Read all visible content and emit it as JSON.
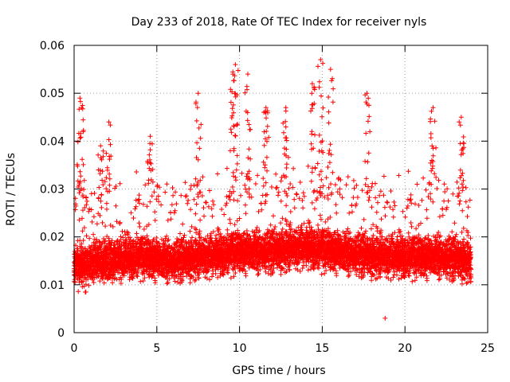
{
  "chart_data": {
    "type": "scatter",
    "title": "Day 233 of 2018, Rate Of TEC Index for receiver nyls",
    "xlabel": "GPS time / hours",
    "ylabel": "ROTI / TECUs",
    "xlim": [
      0,
      25
    ],
    "ylim": [
      0,
      0.06
    ],
    "grid": true,
    "legend": "none",
    "marker": "+",
    "color": "#ff0000",
    "x_ticks": [
      "0",
      "5",
      "10",
      "15",
      "20",
      "25"
    ],
    "y_ticks": [
      "0",
      "0.01",
      "0.02",
      "0.03",
      "0.04",
      "0.05",
      "0.06"
    ],
    "x_tick_values": [
      0,
      5,
      10,
      15,
      20,
      25
    ],
    "y_tick_values": [
      0,
      0.01,
      0.02,
      0.03,
      0.04,
      0.05,
      0.06
    ],
    "series": [
      {
        "name": "ROTI",
        "sampling_interval_hours": 0.0083,
        "x_range": [
          0,
          24
        ],
        "typical_band": [
          0.008,
          0.025
        ],
        "baseline_profile": [
          {
            "x": 0,
            "y": 0.014
          },
          {
            "x": 2,
            "y": 0.015
          },
          {
            "x": 4,
            "y": 0.016
          },
          {
            "x": 6,
            "y": 0.015
          },
          {
            "x": 8,
            "y": 0.016
          },
          {
            "x": 10,
            "y": 0.017
          },
          {
            "x": 12,
            "y": 0.017
          },
          {
            "x": 14,
            "y": 0.018
          },
          {
            "x": 16,
            "y": 0.017
          },
          {
            "x": 18,
            "y": 0.016
          },
          {
            "x": 20,
            "y": 0.016
          },
          {
            "x": 22,
            "y": 0.016
          },
          {
            "x": 24,
            "y": 0.015
          }
        ],
        "peaks": [
          {
            "x": 0.35,
            "y": 0.049
          },
          {
            "x": 0.45,
            "y": 0.047
          },
          {
            "x": 1.6,
            "y": 0.039
          },
          {
            "x": 2.1,
            "y": 0.044
          },
          {
            "x": 4.6,
            "y": 0.041
          },
          {
            "x": 7.5,
            "y": 0.05
          },
          {
            "x": 9.6,
            "y": 0.054
          },
          {
            "x": 9.75,
            "y": 0.056
          },
          {
            "x": 10.5,
            "y": 0.054
          },
          {
            "x": 11.6,
            "y": 0.047
          },
          {
            "x": 12.8,
            "y": 0.047
          },
          {
            "x": 14.4,
            "y": 0.052
          },
          {
            "x": 14.9,
            "y": 0.057
          },
          {
            "x": 15.5,
            "y": 0.055
          },
          {
            "x": 17.7,
            "y": 0.05
          },
          {
            "x": 21.7,
            "y": 0.047
          },
          {
            "x": 23.4,
            "y": 0.045
          }
        ],
        "minimum": {
          "x": 18.8,
          "y": 0.003
        }
      }
    ]
  }
}
